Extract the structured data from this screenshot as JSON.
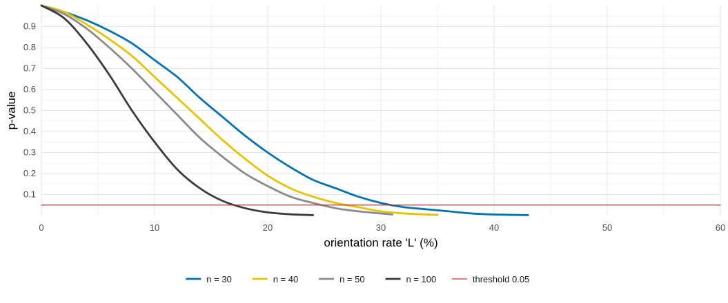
{
  "chart_data": {
    "type": "line",
    "xlabel": "orientation rate 'L' (%)",
    "ylabel": "p-value",
    "xlim": [
      0,
      60
    ],
    "ylim": [
      0,
      1
    ],
    "x_ticks": [
      "0",
      "10",
      "20",
      "30",
      "40",
      "50",
      "60"
    ],
    "y_ticks": [
      "0.1",
      "0.2",
      "0.3",
      "0.4",
      "0.5",
      "0.6",
      "0.7",
      "0.8",
      "0.9"
    ],
    "grid": true,
    "legend_position": "bottom",
    "series": [
      {
        "name": "n =  30",
        "color": "#0072b2",
        "points": [
          [
            0,
            1.0
          ],
          [
            2,
            0.97
          ],
          [
            4,
            0.93
          ],
          [
            6,
            0.88
          ],
          [
            8,
            0.82
          ],
          [
            10,
            0.74
          ],
          [
            12,
            0.66
          ],
          [
            14,
            0.56
          ],
          [
            16,
            0.47
          ],
          [
            18,
            0.38
          ],
          [
            20,
            0.3
          ],
          [
            22,
            0.23
          ],
          [
            24,
            0.17
          ],
          [
            26,
            0.13
          ],
          [
            28,
            0.09
          ],
          [
            30,
            0.06
          ],
          [
            32,
            0.04
          ],
          [
            34,
            0.03
          ],
          [
            36,
            0.02
          ],
          [
            38,
            0.01
          ],
          [
            40,
            0.005
          ],
          [
            43,
            0.002
          ]
        ]
      },
      {
        "name": "n =  40",
        "color": "#e6c300",
        "points": [
          [
            0,
            1.0
          ],
          [
            2,
            0.97
          ],
          [
            4,
            0.91
          ],
          [
            6,
            0.84
          ],
          [
            8,
            0.76
          ],
          [
            10,
            0.66
          ],
          [
            12,
            0.56
          ],
          [
            14,
            0.46
          ],
          [
            16,
            0.36
          ],
          [
            18,
            0.27
          ],
          [
            20,
            0.19
          ],
          [
            22,
            0.13
          ],
          [
            24,
            0.09
          ],
          [
            26,
            0.06
          ],
          [
            28,
            0.04
          ],
          [
            30,
            0.02
          ],
          [
            32,
            0.01
          ],
          [
            35,
            0.003
          ]
        ]
      },
      {
        "name": "n =  50",
        "color": "#8a8a8a",
        "points": [
          [
            0,
            1.0
          ],
          [
            2,
            0.96
          ],
          [
            4,
            0.89
          ],
          [
            6,
            0.8
          ],
          [
            8,
            0.7
          ],
          [
            10,
            0.59
          ],
          [
            12,
            0.48
          ],
          [
            14,
            0.37
          ],
          [
            16,
            0.28
          ],
          [
            18,
            0.2
          ],
          [
            20,
            0.14
          ],
          [
            22,
            0.09
          ],
          [
            24,
            0.06
          ],
          [
            26,
            0.035
          ],
          [
            28,
            0.02
          ],
          [
            30,
            0.01
          ],
          [
            31,
            0.005
          ]
        ]
      },
      {
        "name": "n = 100",
        "color": "#3a3a3a",
        "points": [
          [
            0,
            1.0
          ],
          [
            2,
            0.94
          ],
          [
            4,
            0.82
          ],
          [
            6,
            0.67
          ],
          [
            8,
            0.5
          ],
          [
            10,
            0.35
          ],
          [
            12,
            0.22
          ],
          [
            14,
            0.13
          ],
          [
            16,
            0.07
          ],
          [
            18,
            0.035
          ],
          [
            20,
            0.015
          ],
          [
            22,
            0.006
          ],
          [
            24,
            0.002
          ]
        ]
      },
      {
        "name": "threshold 0.05",
        "color": "#cc3333",
        "points": [
          [
            0,
            0.05
          ],
          [
            60,
            0.05
          ]
        ]
      }
    ]
  }
}
